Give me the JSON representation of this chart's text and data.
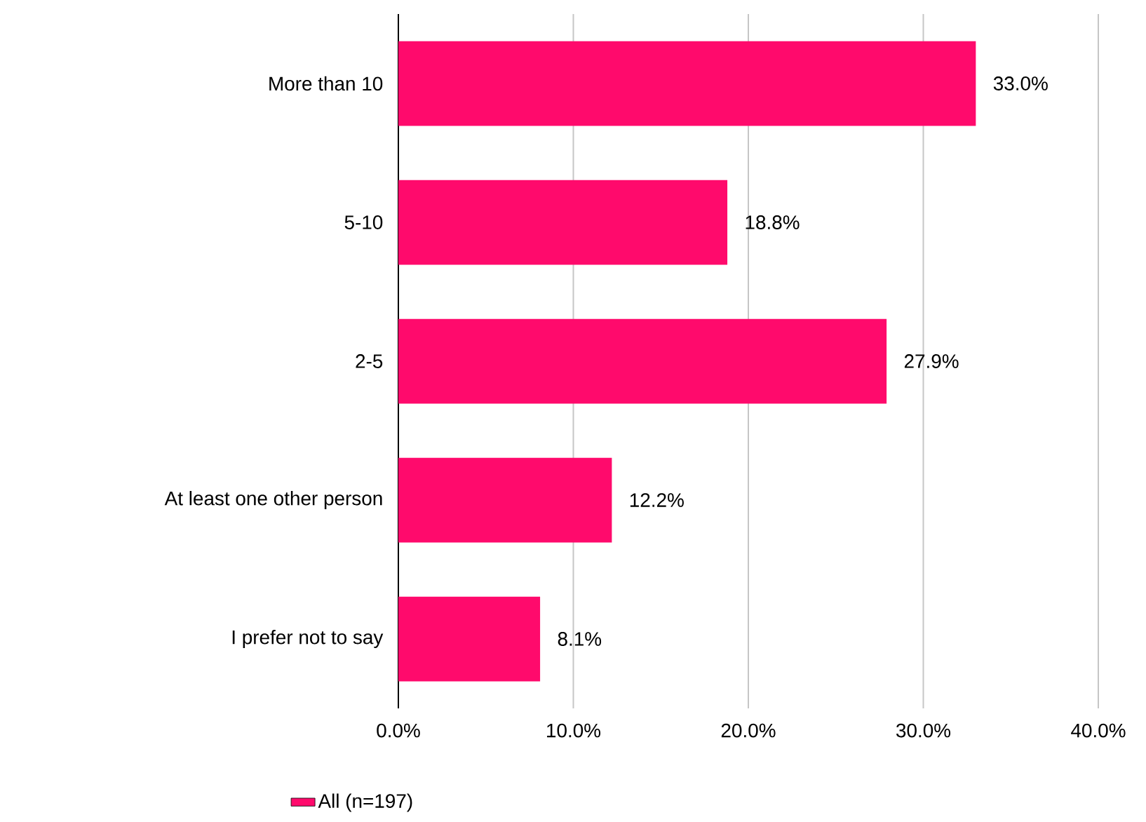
{
  "chart_data": {
    "type": "bar",
    "orientation": "horizontal",
    "categories": [
      "More than 10",
      "5-10",
      "2-5",
      "At least one other person",
      "I prefer not to say"
    ],
    "series": [
      {
        "name": "All (n=197)",
        "color": "#ff0a6c",
        "values": [
          33.0,
          18.8,
          27.9,
          12.2,
          8.1
        ],
        "value_labels": [
          "33.0%",
          "18.8%",
          "27.9%",
          "12.2%",
          "8.1%"
        ]
      }
    ],
    "xlim": [
      0,
      40
    ],
    "xticks": [
      {
        "value": 0,
        "label": "0.0%"
      },
      {
        "value": 10,
        "label": "10.0%"
      },
      {
        "value": 20,
        "label": "20.0%"
      },
      {
        "value": 30,
        "label": "30.0%"
      },
      {
        "value": 40,
        "label": "40.0%"
      }
    ],
    "grid": "x",
    "legend": "bottom"
  }
}
